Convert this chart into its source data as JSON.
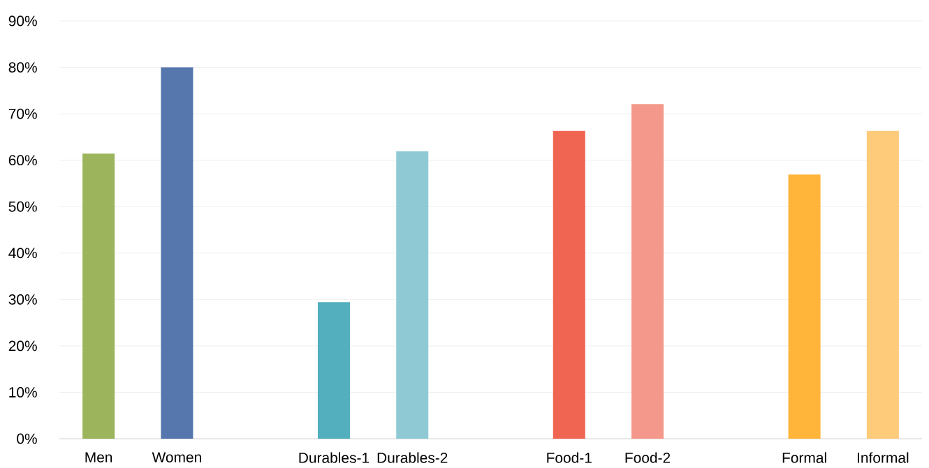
{
  "chart_data": {
    "type": "bar",
    "categories": [
      "Men",
      "Women",
      null,
      "Durables-1",
      "Durables-2",
      null,
      "Food-1",
      "Food-2",
      null,
      "Formal",
      "Informal"
    ],
    "values": [
      61.4,
      80,
      null,
      29.4,
      61.9,
      null,
      66.3,
      72.1,
      null,
      56.9,
      66.3
    ],
    "colors": [
      "#9cb55c",
      "#5577ad",
      "#ffffff",
      "#53afbd",
      "#8fcad4",
      "#ffffff",
      "#f06552",
      "#f4988b",
      "#ffffff",
      "#ffb43a",
      "#fecb7b"
    ],
    "ylim": [
      0,
      90
    ],
    "yticks": [
      {
        "value": 0,
        "label": "0%"
      },
      {
        "value": 10,
        "label": "10%"
      },
      {
        "value": 20,
        "label": "20%"
      },
      {
        "value": 30,
        "label": "30%"
      },
      {
        "value": 40,
        "label": "40%"
      },
      {
        "value": 50,
        "label": "50%"
      },
      {
        "value": 60,
        "label": "60%"
      },
      {
        "value": 70,
        "label": "70%"
      },
      {
        "value": 80,
        "label": "80%"
      },
      {
        "value": 90,
        "label": "90%"
      }
    ],
    "grid": "y"
  }
}
